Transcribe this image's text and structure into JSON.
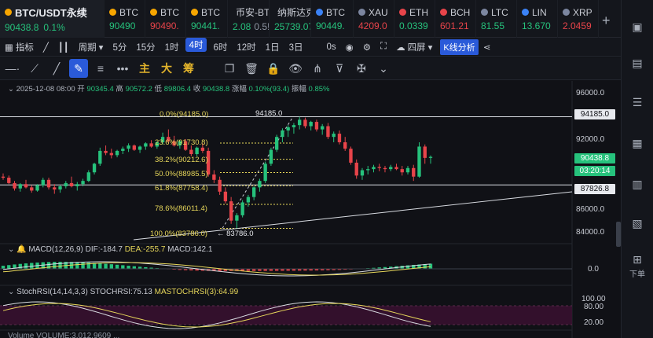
{
  "tickers": [
    {
      "name": "BTC/USDT永续",
      "price": "90438.8",
      "change": "0.1%",
      "dir": "up",
      "color": "#f7a600",
      "active": true
    },
    {
      "name": "BTC",
      "price": "90490",
      "dir": "up",
      "color": "#f7a600"
    },
    {
      "name": "BTC",
      "price": "90490.",
      "dir": "dn",
      "color": "#f7a600"
    },
    {
      "name": "BTC",
      "price": "90441.",
      "dir": "up",
      "color": "#f7a600"
    },
    {
      "name": "币安-BT",
      "price": "2.08",
      "price2": "0.5!",
      "dir": "up",
      "color": "#f0b90b"
    },
    {
      "name": "纳斯达克",
      "price": "25739.07",
      "dir": "up",
      "color": "#e8444a"
    },
    {
      "name": "BTC",
      "price": "90449.",
      "dir": "up",
      "color": "#3b82f6"
    },
    {
      "name": "XAU",
      "price": "4209.0",
      "dir": "dn",
      "color": "#7c86a0"
    },
    {
      "name": "ETH",
      "price": "0.0339",
      "dir": "up",
      "color": "#e8444a"
    },
    {
      "name": "BCH",
      "price": "601.21",
      "dir": "dn",
      "color": "#e8444a"
    },
    {
      "name": "LTC",
      "price": "81.55",
      "dir": "up",
      "color": "#7c86a0"
    },
    {
      "name": "LIN",
      "price": "13.670",
      "dir": "up",
      "color": "#3b82f6"
    },
    {
      "name": "XRP",
      "price": "2.0459",
      "dir": "dn",
      "color": "#7c86a0"
    }
  ],
  "add_label": "+",
  "toolbar": {
    "indicator": "指标",
    "period": "周期",
    "intervals": [
      "5分",
      "15分",
      "1时",
      "4时",
      "6时",
      "12时",
      "1日",
      "3日"
    ],
    "selected": "4时",
    "zero_s": "0s",
    "window": "四屏",
    "kline_analysis": "K线分析"
  },
  "drawtools": {
    "main": "主",
    "big": "大",
    "chip": "筹"
  },
  "ohlc": {
    "date": "2025-12-08 08:00",
    "open_label": "开",
    "open": "90345.4",
    "high_label": "高",
    "high": "90572.2",
    "low_label": "低",
    "low": "89806.4",
    "close_label": "收",
    "close": "90438.8",
    "change_label": "涨幅",
    "change": "0.10%(93.4)",
    "amp_label": "振幅",
    "amp": "0.85%"
  },
  "price_axis": [
    "96000.0",
    "94185.0",
    "92000.0",
    "90438.8",
    "03:20:14",
    "87826.8",
    "86000.0",
    "84000.0"
  ],
  "fib": [
    {
      "label": "0.0%(94185.0)"
    },
    {
      "label": "23.6%(91730.8)"
    },
    {
      "label": "38.2%(90212.6)"
    },
    {
      "label": "50.0%(88985.5)"
    },
    {
      "label": "61.8%(87758.4)"
    },
    {
      "label": "78.6%(86011.4)"
    },
    {
      "label": "100.0%(83786.0)"
    }
  ],
  "high_mark": "94185.0",
  "low_mark": "← 83786.0",
  "macd": {
    "name": "MACD(12,26,9)",
    "dif": "DIF:-184.7",
    "dea": "DEA:-255.7",
    "macd": "MACD:142.1",
    "axis": "0.0"
  },
  "stochrsi": {
    "name": "StochRSI(14,14,3,3)",
    "stoch": "STOCHRSI:75.13",
    "ma": "MASTOCHRSI(3):64.99",
    "axis": [
      "100.00",
      "80.00",
      "20.00"
    ]
  },
  "volume": {
    "text": "Volume  VOLUME:3,012.9609   ..."
  },
  "sidebar": {
    "download": "下单"
  },
  "chart_data": {
    "type": "candlestick",
    "colors": {
      "up": "#26c27c",
      "down": "#e8444a"
    },
    "candles": [
      [
        88600,
        88900,
        88300,
        88500
      ],
      [
        88500,
        88700,
        87900,
        88000
      ],
      [
        88000,
        88200,
        87300,
        87500
      ],
      [
        87500,
        88000,
        87200,
        87900
      ],
      [
        87900,
        88300,
        87500,
        87600
      ],
      [
        87600,
        87800,
        87100,
        87300
      ],
      [
        87300,
        87900,
        87200,
        87800
      ],
      [
        87800,
        88500,
        87600,
        88300
      ],
      [
        88300,
        88500,
        87400,
        87600
      ],
      [
        87600,
        87900,
        87000,
        87400
      ],
      [
        87400,
        87800,
        87100,
        87700
      ],
      [
        87700,
        88200,
        87500,
        88000
      ],
      [
        88000,
        88600,
        87600,
        87700
      ],
      [
        87700,
        88100,
        87300,
        87900
      ],
      [
        87900,
        88400,
        87700,
        88200
      ],
      [
        88200,
        89200,
        88100,
        89000
      ],
      [
        89000,
        89900,
        88800,
        89800
      ],
      [
        89800,
        91300,
        89600,
        91000
      ],
      [
        91000,
        91500,
        90600,
        90800
      ],
      [
        90800,
        91200,
        90300,
        90600
      ],
      [
        90600,
        91100,
        90400,
        91000
      ],
      [
        91000,
        91400,
        90700,
        91200
      ],
      [
        91200,
        91700,
        90900,
        91500
      ],
      [
        91500,
        91600,
        91000,
        91100
      ],
      [
        91100,
        91500,
        90800,
        91400
      ],
      [
        91400,
        91800,
        91100,
        91700
      ],
      [
        91700,
        92000,
        91300,
        91400
      ],
      [
        91400,
        91900,
        91200,
        91800
      ],
      [
        91800,
        92700,
        91600,
        92300
      ],
      [
        92300,
        93000,
        91700,
        91900
      ],
      [
        91900,
        92400,
        91400,
        91500
      ],
      [
        91500,
        92000,
        91200,
        91900
      ],
      [
        91900,
        92100,
        91000,
        91100
      ],
      [
        91100,
        91500,
        90500,
        90700
      ],
      [
        90700,
        91400,
        90500,
        91300
      ],
      [
        91300,
        91700,
        90800,
        91000
      ],
      [
        91000,
        91300,
        88600,
        88800
      ],
      [
        88800,
        89200,
        88000,
        88300
      ],
      [
        88300,
        88600,
        86900,
        87200
      ],
      [
        87200,
        87600,
        86100,
        86300
      ],
      [
        86300,
        86700,
        84200,
        84500
      ],
      [
        84500,
        85200,
        83786,
        85000
      ],
      [
        85000,
        86400,
        84800,
        86200
      ],
      [
        86200,
        86900,
        85800,
        86700
      ],
      [
        86700,
        87700,
        86400,
        87600
      ],
      [
        87600,
        88400,
        87200,
        88200
      ],
      [
        88200,
        90000,
        88000,
        89800
      ],
      [
        89800,
        91300,
        89600,
        91100
      ],
      [
        91100,
        92500,
        90900,
        92300
      ],
      [
        92300,
        93100,
        91800,
        92900
      ],
      [
        92900,
        93400,
        92300,
        93200
      ],
      [
        93200,
        93600,
        92600,
        93400
      ],
      [
        93400,
        94185,
        93000,
        93900
      ],
      [
        93900,
        94100,
        93100,
        93300
      ],
      [
        93300,
        93800,
        92900,
        93700
      ],
      [
        93700,
        93900,
        92800,
        93000
      ],
      [
        93000,
        93500,
        92500,
        93300
      ],
      [
        93300,
        93600,
        92100,
        92300
      ],
      [
        92300,
        92800,
        91800,
        92600
      ],
      [
        92600,
        92900,
        91600,
        91800
      ],
      [
        91800,
        92300,
        91000,
        91200
      ],
      [
        91200,
        91400,
        89700,
        89900
      ],
      [
        89900,
        90200,
        88400,
        88700
      ],
      [
        88700,
        89400,
        88300,
        89200
      ],
      [
        89200,
        89600,
        88800,
        89300
      ],
      [
        89300,
        89700,
        89000,
        89500
      ],
      [
        89500,
        89800,
        89100,
        89400
      ],
      [
        89400,
        89600,
        89000,
        89300
      ],
      [
        89300,
        89700,
        89100,
        89500
      ],
      [
        89500,
        89800,
        89200,
        89300
      ],
      [
        89300,
        89600,
        88700,
        89000
      ],
      [
        89000,
        89600,
        88800,
        89400
      ],
      [
        89400,
        89700,
        88200,
        88600
      ],
      [
        88600,
        91800,
        88500,
        91400
      ],
      [
        91400,
        91600,
        89800,
        90345
      ],
      [
        90345,
        90572,
        89806,
        90438
      ]
    ],
    "price_range": [
      82500,
      97000
    ],
    "markers": [
      94185.0,
      87826.8,
      90438.8
    ]
  }
}
